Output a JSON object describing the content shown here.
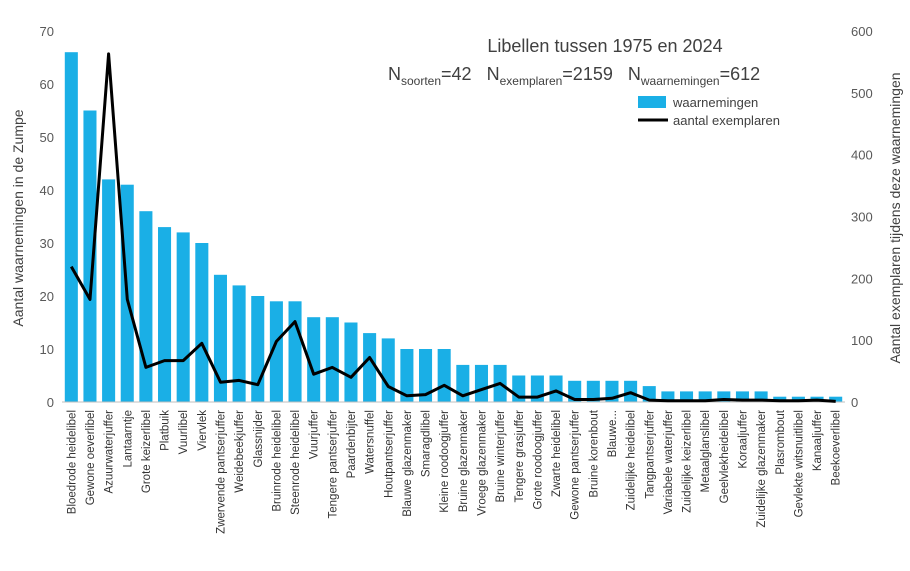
{
  "chart_data": {
    "type": "bar+line",
    "title": "Libellen tussen 1975 en 2024",
    "stats": [
      {
        "base": "N",
        "sub": "soorten",
        "value": "=42"
      },
      {
        "base": "N",
        "sub": "exemplaren",
        "value": "=2159"
      },
      {
        "base": "N",
        "sub": "waarnemingen",
        "value": "=612"
      }
    ],
    "ylabel_left": "Aantal waarnemingen in de Zumpe",
    "ylabel_right": "Aantal exemplaren tijdens deze waarnemingen",
    "ylim_left": [
      0,
      70
    ],
    "yticks_left": [
      0,
      10,
      20,
      30,
      40,
      50,
      60,
      70
    ],
    "ylim_right": [
      0,
      600
    ],
    "yticks_right": [
      0,
      100,
      200,
      300,
      400,
      500,
      600
    ],
    "categories": [
      "Bloedrode heidelibel",
      "Gewone oeverlibel",
      "Azuurwaterjuffer",
      "Lantaarntje",
      "Grote keizerlibel",
      "Platbuik",
      "Vuurlibel",
      "Viervlek",
      "Zwervende pantserjuffer",
      "Weidebeekjuffer",
      "Glassnijder",
      "Bruinrode heidelibel",
      "Steenrode heidelibel",
      "Vuurjuffer",
      "Tengere pantserjuffer",
      "Paardenbijter",
      "Watersnuffel",
      "Houtpantserjuffer",
      "Blauwe glazenmaker",
      "Smaragdlibel",
      "Kleine roodoogjuffer",
      "Bruine glazenmaker",
      "Vroege glazenmaker",
      "Bruine winterjuffer",
      "Tengere grasjuffer",
      "Grote roodoogjuffer",
      "Zwarte heidelibel",
      "Gewone pantserjuffer",
      "Bruine korenbout",
      "Blauwe...",
      "Zuidelijke heidelibel",
      "Tangpantserjuffer",
      "Variabele waterjuffer",
      "Zuidelijke keizerlibel",
      "Metaalglanslibel",
      "Geelvlekheidelibel",
      "Koraaljuffer",
      "Zuidelijke glazenmaker",
      "Plasrombout",
      "Gevlekte witsnuitlibel",
      "Kanaaljuffer",
      "Beekoeverlibel"
    ],
    "series": [
      {
        "name": "waarnemingen",
        "axis": "left",
        "type": "bar",
        "color": "#1AAFE6",
        "values": [
          66,
          55,
          42,
          41,
          36,
          33,
          32,
          30,
          24,
          22,
          20,
          19,
          19,
          16,
          16,
          15,
          13,
          12,
          10,
          10,
          10,
          7,
          7,
          7,
          5,
          5,
          5,
          4,
          4,
          4,
          4,
          3,
          2,
          2,
          2,
          2,
          2,
          2,
          1,
          1,
          1,
          1
        ]
      },
      {
        "name": "aantal exemplaren",
        "axis": "right",
        "type": "line",
        "color": "#000000",
        "values": [
          219,
          166,
          563,
          166,
          56,
          67,
          67,
          95,
          32,
          35,
          28,
          98,
          130,
          45,
          56,
          40,
          72,
          25,
          10,
          12,
          27,
          10,
          20,
          30,
          8,
          8,
          18,
          4,
          4,
          6,
          15,
          3,
          2,
          2,
          2,
          4,
          3,
          3,
          2,
          2,
          3,
          1
        ]
      }
    ],
    "legend": "top-right"
  }
}
